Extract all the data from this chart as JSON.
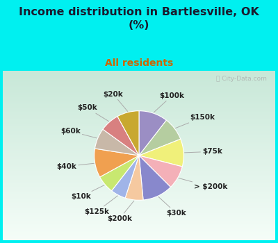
{
  "title": "Income distribution in Bartlesville, OK\n(%)",
  "subtitle": "All residents",
  "title_color": "#1a1a2e",
  "subtitle_color": "#cc6600",
  "background_color": "#00f0f0",
  "chart_bg_top": "#d8ede0",
  "chart_bg_bottom": "#f0f8f5",
  "watermark": "City-Data.com",
  "labels": [
    "$100k",
    "$150k",
    "$75k",
    "> $200k",
    "$30k",
    "$200k",
    "$125k",
    "$10k",
    "$40k",
    "$60k",
    "$50k",
    "$20k"
  ],
  "values": [
    10.5,
    8.5,
    10.0,
    8.5,
    11.0,
    6.5,
    5.5,
    6.5,
    10.5,
    7.5,
    7.0,
    8.0
  ],
  "colors": [
    "#9b8ec4",
    "#b5cda0",
    "#f0f07a",
    "#f4b0b8",
    "#8888cc",
    "#f5c9a0",
    "#a0b4e8",
    "#c8e870",
    "#f0a050",
    "#c8b8a8",
    "#d88080",
    "#c8a830"
  ],
  "startangle": 90,
  "label_fontsize": 7.5,
  "label_fontweight": "bold",
  "label_color": "#222222",
  "line_color": "#aaaaaa"
}
